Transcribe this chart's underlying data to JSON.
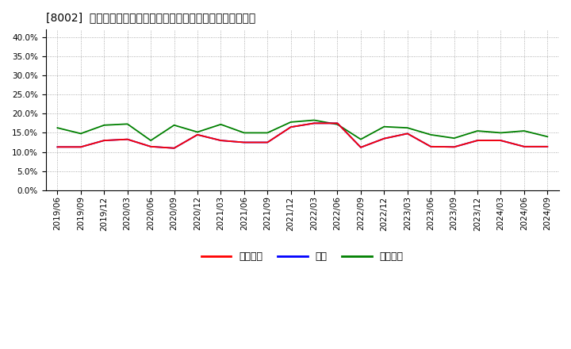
{
  "title": "[8002]  売上債権、在庫、買入債務の総資産に対する比率の推移",
  "x_labels": [
    "2019/06",
    "2019/09",
    "2019/12",
    "2020/03",
    "2020/06",
    "2020/09",
    "2020/12",
    "2021/03",
    "2021/06",
    "2021/09",
    "2021/12",
    "2022/03",
    "2022/06",
    "2022/09",
    "2022/12",
    "2023/03",
    "2023/06",
    "2023/09",
    "2023/12",
    "2024/03",
    "2024/06",
    "2024/09"
  ],
  "series_urikake": {
    "label": "売上債権",
    "color": "#ff0000",
    "values": [
      0.113,
      0.113,
      0.13,
      0.133,
      0.114,
      0.11,
      0.145,
      0.13,
      0.125,
      0.125,
      0.165,
      0.175,
      0.175,
      0.112,
      0.135,
      0.148,
      0.114,
      0.113,
      0.13,
      0.13,
      0.114,
      0.114
    ]
  },
  "series_zaiko": {
    "label": "在庫",
    "color": "#0000ff",
    "values": [
      0.113,
      0.113,
      0.13,
      0.133,
      0.114,
      0.11,
      0.145,
      0.13,
      0.125,
      0.125,
      0.165,
      0.175,
      0.175,
      0.112,
      0.135,
      0.148,
      0.114,
      0.113,
      0.13,
      0.13,
      0.114,
      0.114
    ]
  },
  "series_kaiire": {
    "label": "買入債務",
    "color": "#008000",
    "values": [
      0.163,
      0.148,
      0.17,
      0.173,
      0.13,
      0.17,
      0.152,
      0.172,
      0.15,
      0.15,
      0.178,
      0.183,
      0.172,
      0.133,
      0.166,
      0.163,
      0.145,
      0.136,
      0.155,
      0.15,
      0.155,
      0.14
    ]
  },
  "ylim": [
    0.0,
    0.42
  ],
  "yticks": [
    0.0,
    0.05,
    0.1,
    0.15,
    0.2,
    0.25,
    0.3,
    0.35,
    0.4
  ],
  "background_color": "#ffffff",
  "plot_bg_color": "#ffffff",
  "grid_color": "#999999",
  "title_fontsize": 10,
  "legend_fontsize": 9,
  "tick_fontsize": 7.5
}
